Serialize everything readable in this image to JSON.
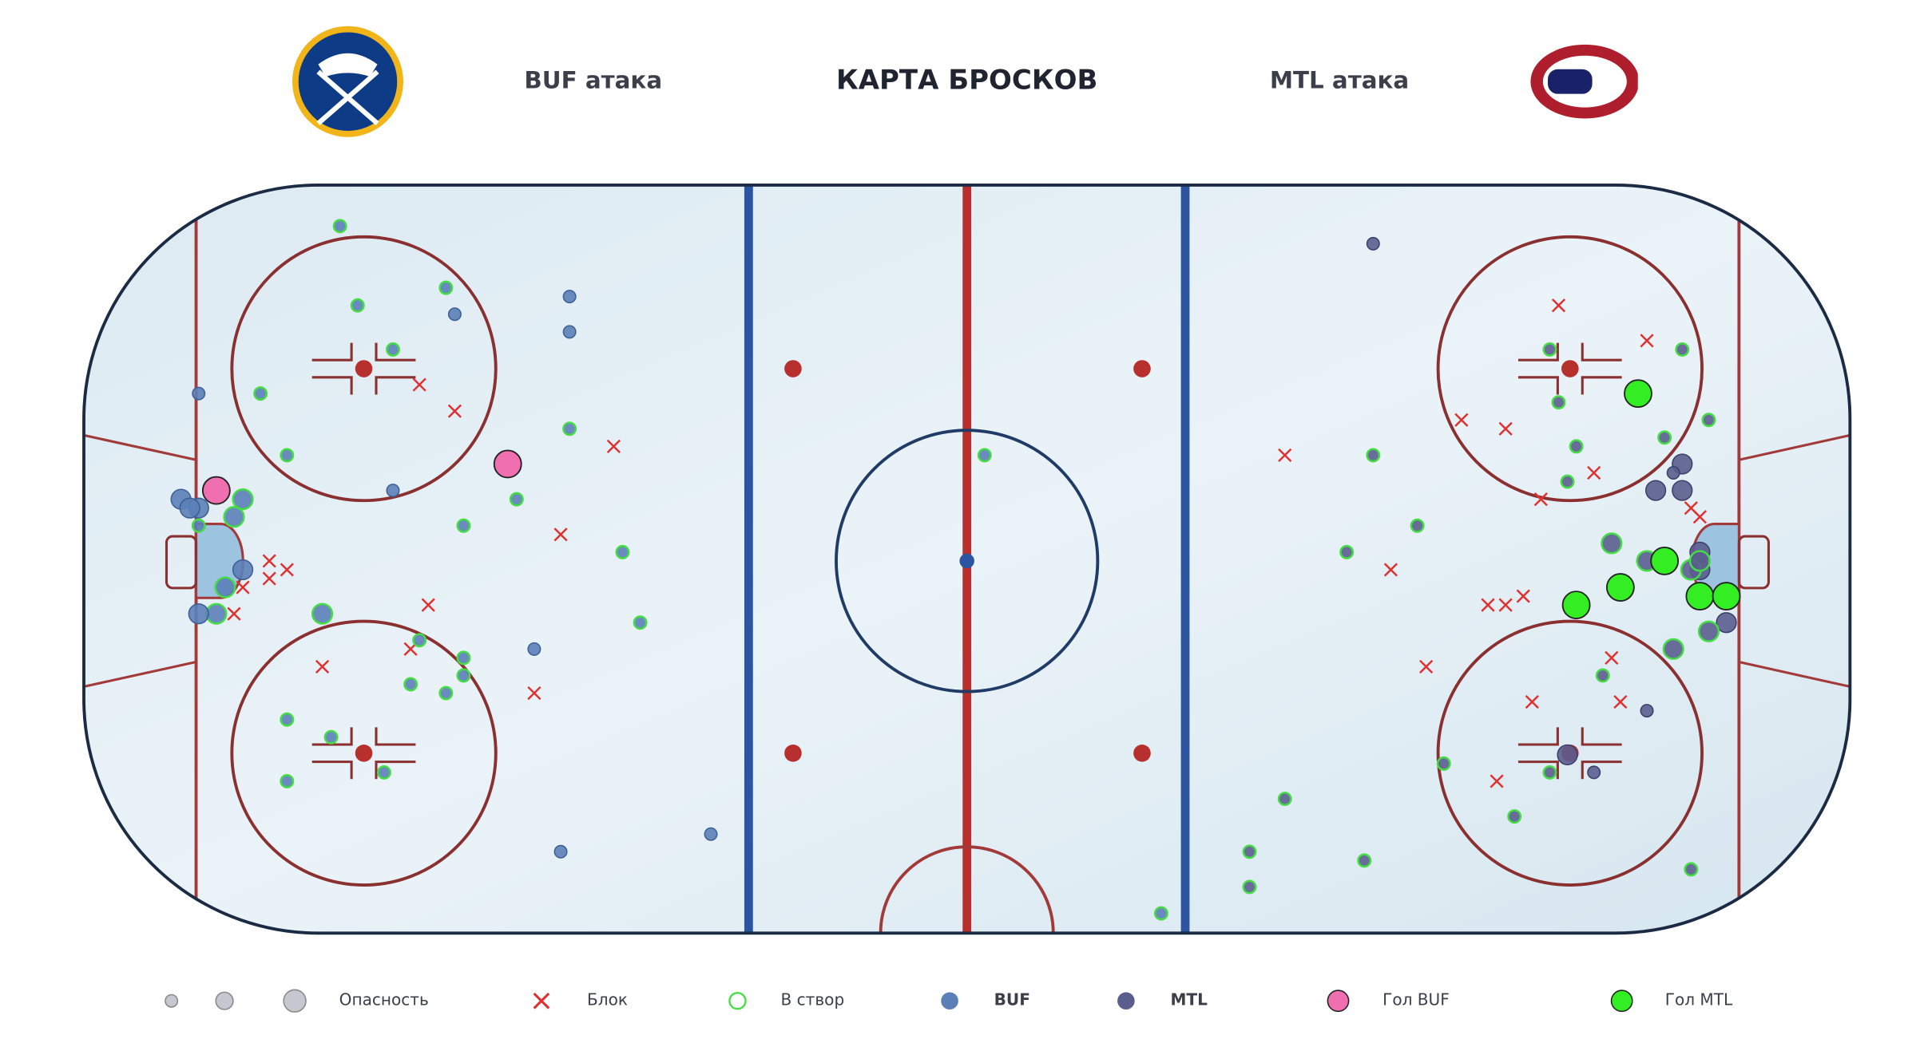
{
  "header": {
    "left": "BUF атака",
    "title": "КАРТА БРОСКОВ",
    "right": "MTL атака"
  },
  "legend": {
    "danger": "Опасность",
    "block": "Блок",
    "on_target": "В створ",
    "team_a": "BUF",
    "team_b": "MTL",
    "goal_a": "Гол BUF",
    "goal_b": "Гол MTL"
  },
  "shots": [
    {
      "team": "BUF",
      "x": -62,
      "y": 20,
      "danger": 1,
      "result": "block"
    },
    {
      "team": "BUF",
      "x": -58,
      "y": 17,
      "danger": 1,
      "result": "block"
    },
    {
      "team": "BUF",
      "x": -40,
      "y": 13,
      "danger": 1,
      "result": "block"
    },
    {
      "team": "BUF",
      "x": -46,
      "y": 3,
      "danger": 1,
      "result": "block"
    },
    {
      "team": "BUF",
      "x": -77,
      "y": -1,
      "danger": 1,
      "result": "block"
    },
    {
      "team": "BUF",
      "x": -79,
      "y": 0,
      "danger": 1,
      "result": "block"
    },
    {
      "team": "BUF",
      "x": -79,
      "y": -2,
      "danger": 1,
      "result": "block"
    },
    {
      "team": "BUF",
      "x": -82,
      "y": -3,
      "danger": 1,
      "result": "block"
    },
    {
      "team": "BUF",
      "x": -83,
      "y": -6,
      "danger": 1,
      "result": "block"
    },
    {
      "team": "BUF",
      "x": -61,
      "y": -5,
      "danger": 1,
      "result": "block"
    },
    {
      "team": "BUF",
      "x": -63,
      "y": -10,
      "danger": 1,
      "result": "block"
    },
    {
      "team": "BUF",
      "x": -73,
      "y": -12,
      "danger": 1,
      "result": "block"
    },
    {
      "team": "BUF",
      "x": -49,
      "y": -15,
      "danger": 1,
      "result": "block"
    },
    {
      "team": "BUF",
      "x": -71,
      "y": 38,
      "danger": 1,
      "result": "on"
    },
    {
      "team": "BUF",
      "x": -69,
      "y": 29,
      "danger": 1,
      "result": "on"
    },
    {
      "team": "BUF",
      "x": -59,
      "y": 31,
      "danger": 1,
      "result": "on"
    },
    {
      "team": "BUF",
      "x": -65,
      "y": 24,
      "danger": 1,
      "result": "on"
    },
    {
      "team": "BUF",
      "x": -80,
      "y": 19,
      "danger": 1,
      "result": "on"
    },
    {
      "team": "BUF",
      "x": -77,
      "y": 12,
      "danger": 1,
      "result": "on"
    },
    {
      "team": "BUF",
      "x": -45,
      "y": 15,
      "danger": 1,
      "result": "on"
    },
    {
      "team": "BUF",
      "x": -51,
      "y": 7,
      "danger": 1,
      "result": "on"
    },
    {
      "team": "BUF",
      "x": -57,
      "y": 4,
      "danger": 1,
      "result": "on"
    },
    {
      "team": "BUF",
      "x": -39,
      "y": 1,
      "danger": 1,
      "result": "on"
    },
    {
      "team": "BUF",
      "x": -37,
      "y": -7,
      "danger": 1,
      "result": "on"
    },
    {
      "team": "BUF",
      "x": -73,
      "y": -6,
      "danger": 2,
      "result": "on"
    },
    {
      "team": "BUF",
      "x": -62,
      "y": -9,
      "danger": 1,
      "result": "on"
    },
    {
      "team": "BUF",
      "x": -57,
      "y": -11,
      "danger": 1,
      "result": "on"
    },
    {
      "team": "BUF",
      "x": -57,
      "y": -13,
      "danger": 1,
      "result": "on"
    },
    {
      "team": "BUF",
      "x": -63,
      "y": -14,
      "danger": 1,
      "result": "on"
    },
    {
      "team": "BUF",
      "x": -59,
      "y": -15,
      "danger": 1,
      "result": "on"
    },
    {
      "team": "BUF",
      "x": -77,
      "y": -18,
      "danger": 1,
      "result": "on"
    },
    {
      "team": "BUF",
      "x": -72,
      "y": -20,
      "danger": 1,
      "result": "on"
    },
    {
      "team": "BUF",
      "x": -66,
      "y": -24,
      "danger": 1,
      "result": "on"
    },
    {
      "team": "BUF",
      "x": -77,
      "y": -25,
      "danger": 1,
      "result": "on"
    },
    {
      "team": "BUF",
      "x": -82,
      "y": 7,
      "danger": 2,
      "result": "on"
    },
    {
      "team": "BUF",
      "x": -83,
      "y": 5,
      "danger": 2,
      "result": "on"
    },
    {
      "team": "BUF",
      "x": -87,
      "y": 4,
      "danger": 1,
      "result": "on"
    },
    {
      "team": "BUF",
      "x": -84,
      "y": -3,
      "danger": 2,
      "result": "on"
    },
    {
      "team": "BUF",
      "x": -85,
      "y": -6,
      "danger": 2,
      "result": "on"
    },
    {
      "team": "BUF",
      "x": 2,
      "y": 12,
      "danger": 1,
      "result": "on"
    },
    {
      "team": "BUF",
      "x": 22,
      "y": -40,
      "danger": 1,
      "result": "on"
    },
    {
      "team": "BUF",
      "x": -58,
      "y": 28,
      "danger": 1,
      "result": "miss"
    },
    {
      "team": "BUF",
      "x": -45,
      "y": 30,
      "danger": 1,
      "result": "miss"
    },
    {
      "team": "BUF",
      "x": -45,
      "y": 26,
      "danger": 1,
      "result": "miss"
    },
    {
      "team": "BUF",
      "x": -87,
      "y": 19,
      "danger": 1,
      "result": "miss"
    },
    {
      "team": "BUF",
      "x": -65,
      "y": 8,
      "danger": 1,
      "result": "miss"
    },
    {
      "team": "BUF",
      "x": -89,
      "y": 7,
      "danger": 2,
      "result": "miss"
    },
    {
      "team": "BUF",
      "x": -87,
      "y": 6,
      "danger": 2,
      "result": "miss"
    },
    {
      "team": "BUF",
      "x": -88,
      "y": 6,
      "danger": 2,
      "result": "miss"
    },
    {
      "team": "BUF",
      "x": -82,
      "y": -1,
      "danger": 2,
      "result": "miss"
    },
    {
      "team": "BUF",
      "x": -87,
      "y": -6,
      "danger": 2,
      "result": "miss"
    },
    {
      "team": "BUF",
      "x": -49,
      "y": -10,
      "danger": 1,
      "result": "miss"
    },
    {
      "team": "BUF",
      "x": -46,
      "y": -33,
      "danger": 1,
      "result": "miss"
    },
    {
      "team": "BUF",
      "x": -29,
      "y": -31,
      "danger": 1,
      "result": "miss"
    },
    {
      "team": "BUF",
      "x": -85,
      "y": 8,
      "danger": 3,
      "result": "goal"
    },
    {
      "team": "BUF",
      "x": -52,
      "y": 11,
      "danger": 3,
      "result": "goal"
    },
    {
      "team": "MTL",
      "x": 67,
      "y": 29,
      "danger": 1,
      "result": "block"
    },
    {
      "team": "MTL",
      "x": 77,
      "y": 25,
      "danger": 1,
      "result": "block"
    },
    {
      "team": "MTL",
      "x": 56,
      "y": 16,
      "danger": 1,
      "result": "block"
    },
    {
      "team": "MTL",
      "x": 61,
      "y": 15,
      "danger": 1,
      "result": "block"
    },
    {
      "team": "MTL",
      "x": 36,
      "y": 12,
      "danger": 1,
      "result": "block"
    },
    {
      "team": "MTL",
      "x": 71,
      "y": 10,
      "danger": 1,
      "result": "block"
    },
    {
      "team": "MTL",
      "x": 65,
      "y": 7,
      "danger": 1,
      "result": "block"
    },
    {
      "team": "MTL",
      "x": 82,
      "y": 6,
      "danger": 1,
      "result": "block"
    },
    {
      "team": "MTL",
      "x": 83,
      "y": 5,
      "danger": 1,
      "result": "block"
    },
    {
      "team": "MTL",
      "x": 48,
      "y": -1,
      "danger": 1,
      "result": "block"
    },
    {
      "team": "MTL",
      "x": 59,
      "y": -5,
      "danger": 1,
      "result": "block"
    },
    {
      "team": "MTL",
      "x": 61,
      "y": -5,
      "danger": 1,
      "result": "block"
    },
    {
      "team": "MTL",
      "x": 63,
      "y": -4,
      "danger": 1,
      "result": "block"
    },
    {
      "team": "MTL",
      "x": 52,
      "y": -12,
      "danger": 1,
      "result": "block"
    },
    {
      "team": "MTL",
      "x": 73,
      "y": -11,
      "danger": 1,
      "result": "block"
    },
    {
      "team": "MTL",
      "x": 64,
      "y": -16,
      "danger": 1,
      "result": "block"
    },
    {
      "team": "MTL",
      "x": 74,
      "y": -16,
      "danger": 1,
      "result": "block"
    },
    {
      "team": "MTL",
      "x": 60,
      "y": -25,
      "danger": 1,
      "result": "block"
    },
    {
      "team": "MTL",
      "x": 46,
      "y": 36,
      "danger": 1,
      "result": "miss"
    },
    {
      "team": "MTL",
      "x": 78,
      "y": 8,
      "danger": 2,
      "result": "miss"
    },
    {
      "team": "MTL",
      "x": 81,
      "y": 8,
      "danger": 2,
      "result": "miss"
    },
    {
      "team": "MTL",
      "x": 81,
      "y": 11,
      "danger": 2,
      "result": "miss"
    },
    {
      "team": "MTL",
      "x": 80,
      "y": 10,
      "danger": 1,
      "result": "miss"
    },
    {
      "team": "MTL",
      "x": 86,
      "y": -7,
      "danger": 2,
      "result": "miss"
    },
    {
      "team": "MTL",
      "x": 77,
      "y": -17,
      "danger": 1,
      "result": "miss"
    },
    {
      "team": "MTL",
      "x": 71,
      "y": -24,
      "danger": 1,
      "result": "miss"
    },
    {
      "team": "MTL",
      "x": 68,
      "y": -22,
      "danger": 2,
      "result": "miss"
    },
    {
      "team": "MTL",
      "x": 83,
      "y": 1,
      "danger": 2,
      "result": "miss"
    },
    {
      "team": "MTL",
      "x": 83,
      "y": -1,
      "danger": 2,
      "result": "miss"
    },
    {
      "team": "MTL",
      "x": 66,
      "y": 24,
      "danger": 1,
      "result": "on"
    },
    {
      "team": "MTL",
      "x": 67,
      "y": 18,
      "danger": 1,
      "result": "on"
    },
    {
      "team": "MTL",
      "x": 69,
      "y": 13,
      "danger": 1,
      "result": "on"
    },
    {
      "team": "MTL",
      "x": 68,
      "y": 9,
      "danger": 1,
      "result": "on"
    },
    {
      "team": "MTL",
      "x": 79,
      "y": 14,
      "danger": 1,
      "result": "on"
    },
    {
      "team": "MTL",
      "x": 84,
      "y": 16,
      "danger": 1,
      "result": "on"
    },
    {
      "team": "MTL",
      "x": 81,
      "y": 24,
      "danger": 1,
      "result": "on"
    },
    {
      "team": "MTL",
      "x": 46,
      "y": 12,
      "danger": 1,
      "result": "on"
    },
    {
      "team": "MTL",
      "x": 51,
      "y": 4,
      "danger": 1,
      "result": "on"
    },
    {
      "team": "MTL",
      "x": 43,
      "y": 1,
      "danger": 1,
      "result": "on"
    },
    {
      "team": "MTL",
      "x": 73,
      "y": 2,
      "danger": 2,
      "result": "on"
    },
    {
      "team": "MTL",
      "x": 77,
      "y": 0,
      "danger": 2,
      "result": "on"
    },
    {
      "team": "MTL",
      "x": 82,
      "y": -1,
      "danger": 2,
      "result": "on"
    },
    {
      "team": "MTL",
      "x": 80,
      "y": -10,
      "danger": 2,
      "result": "on"
    },
    {
      "team": "MTL",
      "x": 84,
      "y": -8,
      "danger": 2,
      "result": "on"
    },
    {
      "team": "MTL",
      "x": 72,
      "y": -13,
      "danger": 1,
      "result": "on"
    },
    {
      "team": "MTL",
      "x": 54,
      "y": -23,
      "danger": 1,
      "result": "on"
    },
    {
      "team": "MTL",
      "x": 66,
      "y": -24,
      "danger": 1,
      "result": "on"
    },
    {
      "team": "MTL",
      "x": 62,
      "y": -29,
      "danger": 1,
      "result": "on"
    },
    {
      "team": "MTL",
      "x": 36,
      "y": -27,
      "danger": 1,
      "result": "on"
    },
    {
      "team": "MTL",
      "x": 32,
      "y": -33,
      "danger": 1,
      "result": "on"
    },
    {
      "team": "MTL",
      "x": 32,
      "y": -37,
      "danger": 1,
      "result": "on"
    },
    {
      "team": "MTL",
      "x": 45,
      "y": -34,
      "danger": 1,
      "result": "on"
    },
    {
      "team": "MTL",
      "x": 82,
      "y": -35,
      "danger": 1,
      "result": "on"
    },
    {
      "team": "MTL",
      "x": 83,
      "y": 0,
      "danger": 2,
      "result": "on"
    },
    {
      "team": "MTL",
      "x": 76,
      "y": 19,
      "danger": 3,
      "result": "goal"
    },
    {
      "team": "MTL",
      "x": 79,
      "y": 0,
      "danger": 3,
      "result": "goal"
    },
    {
      "team": "MTL",
      "x": 74,
      "y": -3,
      "danger": 3,
      "result": "goal"
    },
    {
      "team": "MTL",
      "x": 69,
      "y": -5,
      "danger": 3,
      "result": "goal"
    },
    {
      "team": "MTL",
      "x": 83,
      "y": -4,
      "danger": 3,
      "result": "goal"
    },
    {
      "team": "MTL",
      "x": 86,
      "y": -4,
      "danger": 3,
      "result": "goal"
    }
  ]
}
